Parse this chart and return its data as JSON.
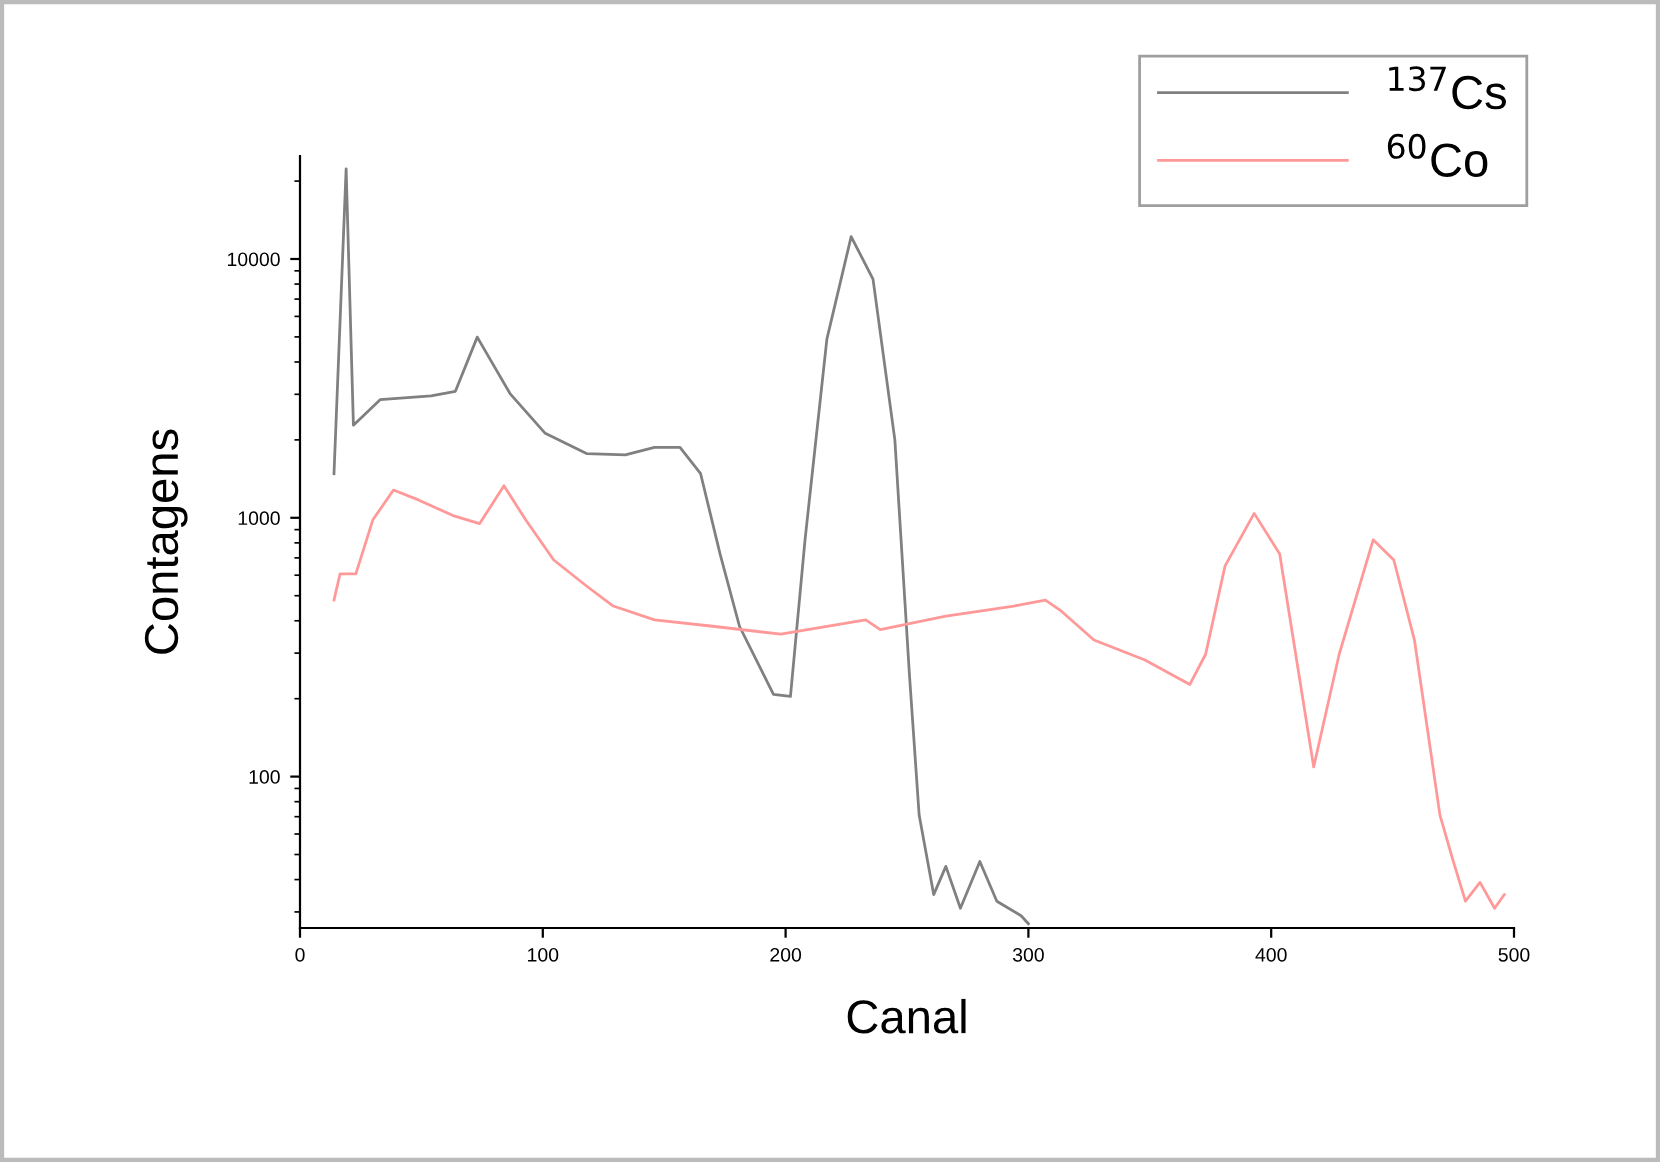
{
  "chart_data": {
    "type": "line",
    "xlabel": "Canal",
    "ylabel": "Contagens",
    "xlim": [
      0,
      500
    ],
    "xticks": [
      0,
      100,
      200,
      300,
      400,
      500
    ],
    "ylim": [
      26,
      25000
    ],
    "yticks": [
      100,
      1000,
      10000
    ],
    "log": "y",
    "grid": false,
    "legend": "top right",
    "marker": "none",
    "line_style": "solid",
    "series": [
      {
        "name": "$^{137}$Cs",
        "color": "#808080",
        "x": [
          14,
          19,
          22,
          33,
          54,
          64,
          73,
          86.5,
          101,
          118,
          134,
          146,
          156.5,
          165,
          173,
          181,
          195,
          202,
          208,
          217,
          227,
          236,
          245,
          251,
          255,
          261,
          266,
          272,
          280,
          287,
          297,
          300
        ],
        "values": [
          1480,
          22300,
          2280,
          2860,
          2960,
          3080,
          4990,
          3020,
          2120,
          1770,
          1750,
          1870,
          1870,
          1480,
          725,
          381,
          208,
          204,
          822,
          4900,
          12200,
          8360,
          2000,
          248,
          71,
          35,
          45,
          31,
          47,
          33,
          29,
          27
        ]
      },
      {
        "name": "$^{60}$Co",
        "color": "#ff9999",
        "x": [
          14,
          16.5,
          23,
          30,
          38.5,
          49,
          63,
          74,
          84,
          93,
          104.5,
          118,
          129,
          146,
          170,
          198,
          233,
          239,
          266,
          294,
          307,
          313,
          327,
          348,
          366.5,
          373,
          381,
          393,
          403.5,
          417.5,
          428,
          442,
          450.5,
          459,
          469.5,
          475,
          480,
          486,
          492,
          496
        ],
        "values": [
          481,
          607,
          607,
          982,
          1280,
          1170,
          1020,
          950,
          1330,
          980,
          687,
          545,
          456,
          403,
          381,
          355,
          403,
          370,
          417,
          456,
          481,
          440,
          337,
          282,
          227,
          297,
          652,
          1040,
          725,
          109,
          297,
          822,
          687,
          337,
          71,
          47,
          33,
          39,
          31,
          35
        ]
      }
    ]
  }
}
